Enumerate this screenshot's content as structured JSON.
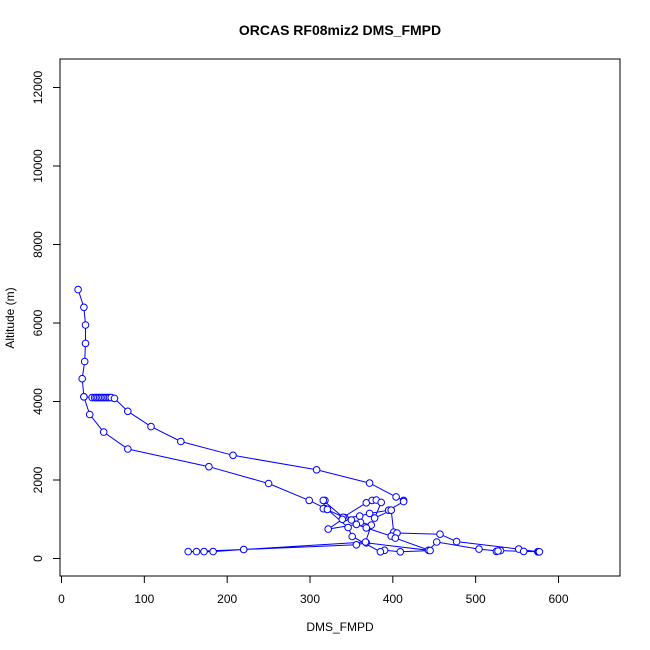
{
  "chart_data": {
    "type": "line",
    "title": "ORCAS RF08miz2 DMS_FMPD",
    "xlabel": "DMS_FMPD",
    "ylabel": "Altitude (m)",
    "xlim": [
      0,
      600
    ],
    "ylim": [
      0,
      12500
    ],
    "x_ticks": [
      0,
      100,
      200,
      300,
      400,
      500,
      600
    ],
    "y_ticks": [
      0,
      2000,
      4000,
      6000,
      8000,
      10000,
      12000
    ],
    "grid": false,
    "legend": "none",
    "colors": {
      "series": "#0000ff",
      "axis": "#000000"
    },
    "series": [
      {
        "points": [
          [
            20,
            6850
          ],
          [
            27,
            6400
          ],
          [
            29,
            5950
          ],
          [
            29,
            5480
          ],
          [
            28,
            5020
          ],
          [
            25,
            4580
          ],
          [
            27,
            4120
          ],
          [
            37,
            4100
          ],
          [
            40,
            4100
          ],
          [
            42,
            4100
          ],
          [
            44,
            4100
          ],
          [
            46,
            4100
          ],
          [
            48,
            4100
          ],
          [
            50,
            4100
          ],
          [
            52,
            4100
          ],
          [
            54,
            4100
          ],
          [
            56,
            4100
          ],
          [
            58,
            4100
          ],
          [
            60,
            4100
          ],
          [
            64,
            4080
          ],
          [
            80,
            3750
          ],
          [
            108,
            3360
          ],
          [
            144,
            2980
          ],
          [
            207,
            2630
          ],
          [
            308,
            2260
          ],
          [
            372,
            1920
          ],
          [
            404,
            1570
          ],
          [
            413,
            1480
          ],
          [
            413,
            1450
          ],
          [
            395,
            1230
          ],
          [
            372,
            1150
          ],
          [
            360,
            1080
          ],
          [
            342,
            1040
          ],
          [
            318,
            1270
          ],
          [
            316,
            1270
          ],
          [
            318,
            1480
          ],
          [
            316,
            1480
          ],
          [
            340,
            1050
          ],
          [
            368,
            1420
          ],
          [
            375,
            1480
          ],
          [
            380,
            1490
          ],
          [
            386,
            1430
          ],
          [
            378,
            1030
          ],
          [
            398,
            1230
          ],
          [
            401,
            670
          ],
          [
            405,
            650
          ],
          [
            457,
            620
          ],
          [
            477,
            430
          ],
          [
            552,
            240
          ],
          [
            575,
            170
          ],
          [
            576,
            170
          ],
          [
            577,
            170
          ],
          [
            558,
            180
          ],
          [
            530,
            200
          ],
          [
            525,
            180
          ],
          [
            527,
            190
          ],
          [
            504,
            240
          ],
          [
            453,
            420
          ],
          [
            443,
            210
          ],
          [
            368,
            400
          ],
          [
            356,
            350
          ],
          [
            220,
            230
          ],
          [
            183,
            175
          ],
          [
            172,
            175
          ],
          [
            163,
            175
          ],
          [
            153,
            175
          ],
          [
            220,
            230
          ],
          [
            367,
            420
          ],
          [
            374,
            850
          ],
          [
            361,
            920
          ],
          [
            350,
            980
          ],
          [
            339,
            1000
          ],
          [
            322,
            750
          ],
          [
            356,
            870
          ],
          [
            368,
            780
          ],
          [
            398,
            570
          ],
          [
            403,
            520
          ],
          [
            445,
            200
          ],
          [
            409,
            170
          ],
          [
            390,
            210
          ],
          [
            385,
            170
          ],
          [
            351,
            560
          ],
          [
            346,
            790
          ],
          [
            321,
            1250
          ],
          [
            299,
            1480
          ],
          [
            250,
            1910
          ],
          [
            178,
            2340
          ],
          [
            80,
            2790
          ],
          [
            51,
            3220
          ],
          [
            34,
            3670
          ],
          [
            27,
            4120
          ]
        ]
      }
    ]
  }
}
